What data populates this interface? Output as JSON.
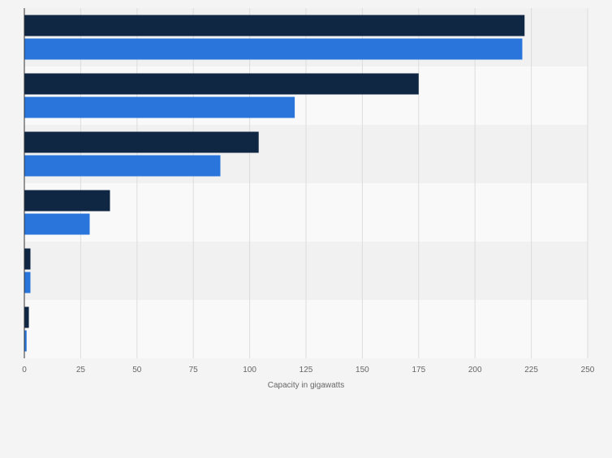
{
  "chart_data": {
    "type": "bar",
    "orientation": "horizontal",
    "categories": [
      "",
      "",
      "",
      "",
      "",
      ""
    ],
    "series": [
      {
        "color": "#0f2742",
        "values": [
          222,
          175,
          104,
          38,
          2.7,
          2
        ]
      },
      {
        "color": "#2a75dc",
        "values": [
          221,
          120,
          87,
          29,
          2.7,
          1
        ]
      }
    ],
    "xlim": [
      0,
      250
    ],
    "xticks": [
      "0",
      "25",
      "50",
      "75",
      "100",
      "125",
      "150",
      "175",
      "200",
      "225",
      "250"
    ],
    "xlabel": "Capacity in gigawatts",
    "ylabel": "",
    "title": "",
    "grid": true,
    "legend": "none"
  }
}
